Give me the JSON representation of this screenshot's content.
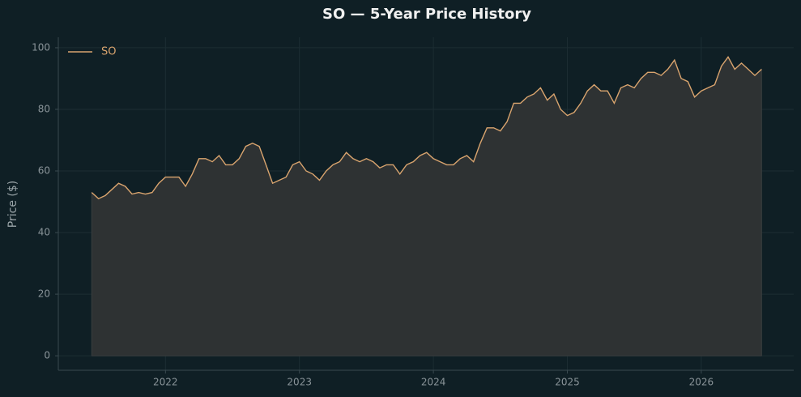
{
  "chart_data": {
    "type": "line",
    "title": "SO — 5-Year Price History",
    "ylabel": "Price ($)",
    "x": [
      2021.45,
      2021.5,
      2021.55,
      2021.6,
      2021.65,
      2021.7,
      2021.75,
      2021.8,
      2021.85,
      2021.9,
      2021.95,
      2022.0,
      2022.05,
      2022.1,
      2022.15,
      2022.2,
      2022.25,
      2022.3,
      2022.35,
      2022.4,
      2022.45,
      2022.5,
      2022.55,
      2022.6,
      2022.65,
      2022.7,
      2022.75,
      2022.8,
      2022.85,
      2022.9,
      2022.95,
      2023.0,
      2023.05,
      2023.1,
      2023.15,
      2023.2,
      2023.25,
      2023.3,
      2023.35,
      2023.4,
      2023.45,
      2023.5,
      2023.55,
      2023.6,
      2023.65,
      2023.7,
      2023.75,
      2023.8,
      2023.85,
      2023.9,
      2023.95,
      2024.0,
      2024.05,
      2024.1,
      2024.15,
      2024.2,
      2024.25,
      2024.3,
      2024.35,
      2024.4,
      2024.45,
      2024.5,
      2024.55,
      2024.6,
      2024.65,
      2024.7,
      2024.75,
      2024.8,
      2024.85,
      2024.9,
      2024.95,
      2025.0,
      2025.05,
      2025.1,
      2025.15,
      2025.2,
      2025.25,
      2025.3,
      2025.35,
      2025.4,
      2025.45,
      2025.5,
      2025.55,
      2025.6,
      2025.65,
      2025.7,
      2025.75,
      2025.8,
      2025.85,
      2025.9,
      2025.95,
      2026.0,
      2026.05,
      2026.1,
      2026.15,
      2026.2,
      2026.25,
      2026.3,
      2026.35,
      2026.4,
      2026.45
    ],
    "series": [
      {
        "name": "SO",
        "color": "#d9a46e",
        "fill": "#2e3233",
        "values": [
          53,
          51,
          52,
          54,
          56,
          55,
          52.5,
          53,
          52.5,
          53,
          56,
          58,
          58,
          58,
          55,
          59,
          64,
          64,
          63,
          65,
          62,
          62,
          64,
          68,
          69,
          68,
          62,
          56,
          57,
          58,
          62,
          63,
          60,
          59,
          57,
          60,
          62,
          63,
          66,
          64,
          63,
          64,
          63,
          61,
          62,
          62,
          59,
          62,
          63,
          65,
          66,
          64,
          63,
          62,
          62,
          64,
          65,
          63,
          69,
          74,
          74,
          73,
          76,
          82,
          82,
          84,
          85,
          87,
          83,
          85,
          80,
          78,
          79,
          82,
          86,
          88,
          86,
          86,
          82,
          87,
          88,
          87,
          90,
          92,
          92,
          91,
          93,
          96,
          90,
          89,
          84,
          86,
          87,
          88,
          94,
          97,
          93,
          95,
          93,
          91,
          93
        ]
      }
    ],
    "xlim": [
      2021.2,
      2026.69
    ],
    "xticks": [
      2022,
      2023,
      2024,
      2025,
      2026
    ],
    "ylim": [
      -4.7,
      103.4
    ],
    "yticks": [
      0,
      20,
      40,
      60,
      80,
      100
    ],
    "grid": true,
    "legend": "upper left"
  }
}
